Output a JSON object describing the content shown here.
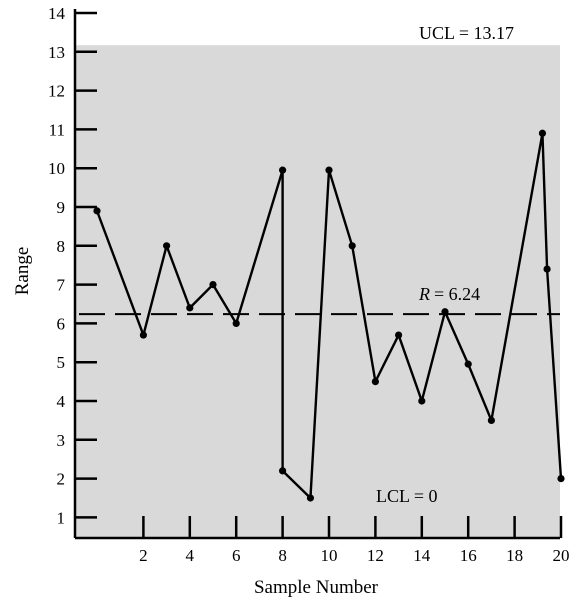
{
  "chart_data": {
    "type": "line",
    "xlabel": "Sample Number",
    "ylabel": "Range",
    "xlim": [
      -0.3,
      20
    ],
    "ylim": [
      0.5,
      14
    ],
    "x_ticks": [
      2,
      4,
      6,
      8,
      10,
      12,
      14,
      16,
      18,
      20
    ],
    "y_ticks": [
      1,
      2,
      3,
      4,
      5,
      6,
      7,
      8,
      9,
      10,
      11,
      12,
      13,
      14
    ],
    "x_tick_labels": [
      "2",
      "4",
      "6",
      "8",
      "10",
      "12",
      "14",
      "16",
      "18",
      "20"
    ],
    "y_tick_labels": [
      "1",
      "2",
      "3",
      "4",
      "5",
      "6",
      "7",
      "8",
      "9",
      "10",
      "11",
      "12",
      "13",
      "14"
    ],
    "series": [
      {
        "x": [
          0,
          2,
          3,
          4,
          5,
          6,
          8,
          8,
          9.2,
          10,
          11,
          12,
          13,
          14,
          15,
          16,
          17,
          19.2,
          19.4,
          20
        ],
        "values": [
          8.9,
          5.7,
          8.0,
          6.4,
          7.0,
          6.0,
          9.95,
          2.2,
          1.5,
          9.95,
          8.0,
          4.5,
          5.7,
          4.0,
          6.3,
          4.95,
          3.5,
          10.9,
          7.4,
          2.0
        ]
      }
    ],
    "control_limits": {
      "ucl": 13.17,
      "center": 6.24,
      "lcl": 0
    },
    "annotations": {
      "ucl_label": "UCL = 13.17",
      "center_label_symbol": "R",
      "center_label_value": "= 6.24",
      "lcl_label": "LCL = 0"
    },
    "colors": {
      "shaded_region": "#d9d9d9",
      "line": "#000000"
    }
  }
}
